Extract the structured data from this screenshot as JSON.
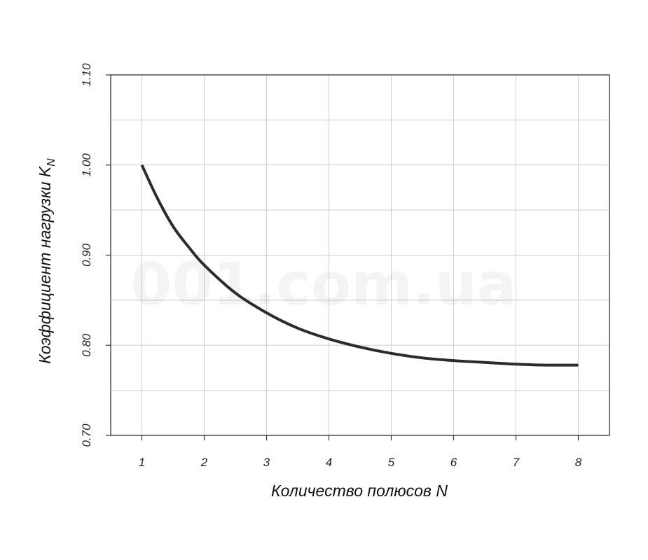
{
  "watermark": "001.com.ua",
  "chart_data": {
    "type": "line",
    "title": "",
    "xlabel": "Количество полюсов N",
    "ylabel_main": "Коэффициент нагрузки K",
    "ylabel_sub": "N",
    "x_ticks": [
      1,
      2,
      3,
      4,
      5,
      6,
      7,
      8
    ],
    "y_ticks": [
      "0.70",
      "0.80",
      "0.90",
      "1.00",
      "1.10"
    ],
    "xlim": [
      0.5,
      8.5
    ],
    "ylim": [
      0.7,
      1.1
    ],
    "grid": true,
    "legend": "none",
    "series": [
      {
        "color": "#2b2b2b",
        "x": [
          1.0,
          1.25,
          1.5,
          1.75,
          2.0,
          2.5,
          3.0,
          3.5,
          4.0,
          4.5,
          5.0,
          5.5,
          6.0,
          6.5,
          7.0,
          7.5,
          8.0
        ],
        "y": [
          1.0,
          0.963,
          0.932,
          0.909,
          0.889,
          0.858,
          0.836,
          0.819,
          0.807,
          0.798,
          0.791,
          0.786,
          0.783,
          0.781,
          0.779,
          0.778,
          0.778
        ]
      }
    ]
  }
}
